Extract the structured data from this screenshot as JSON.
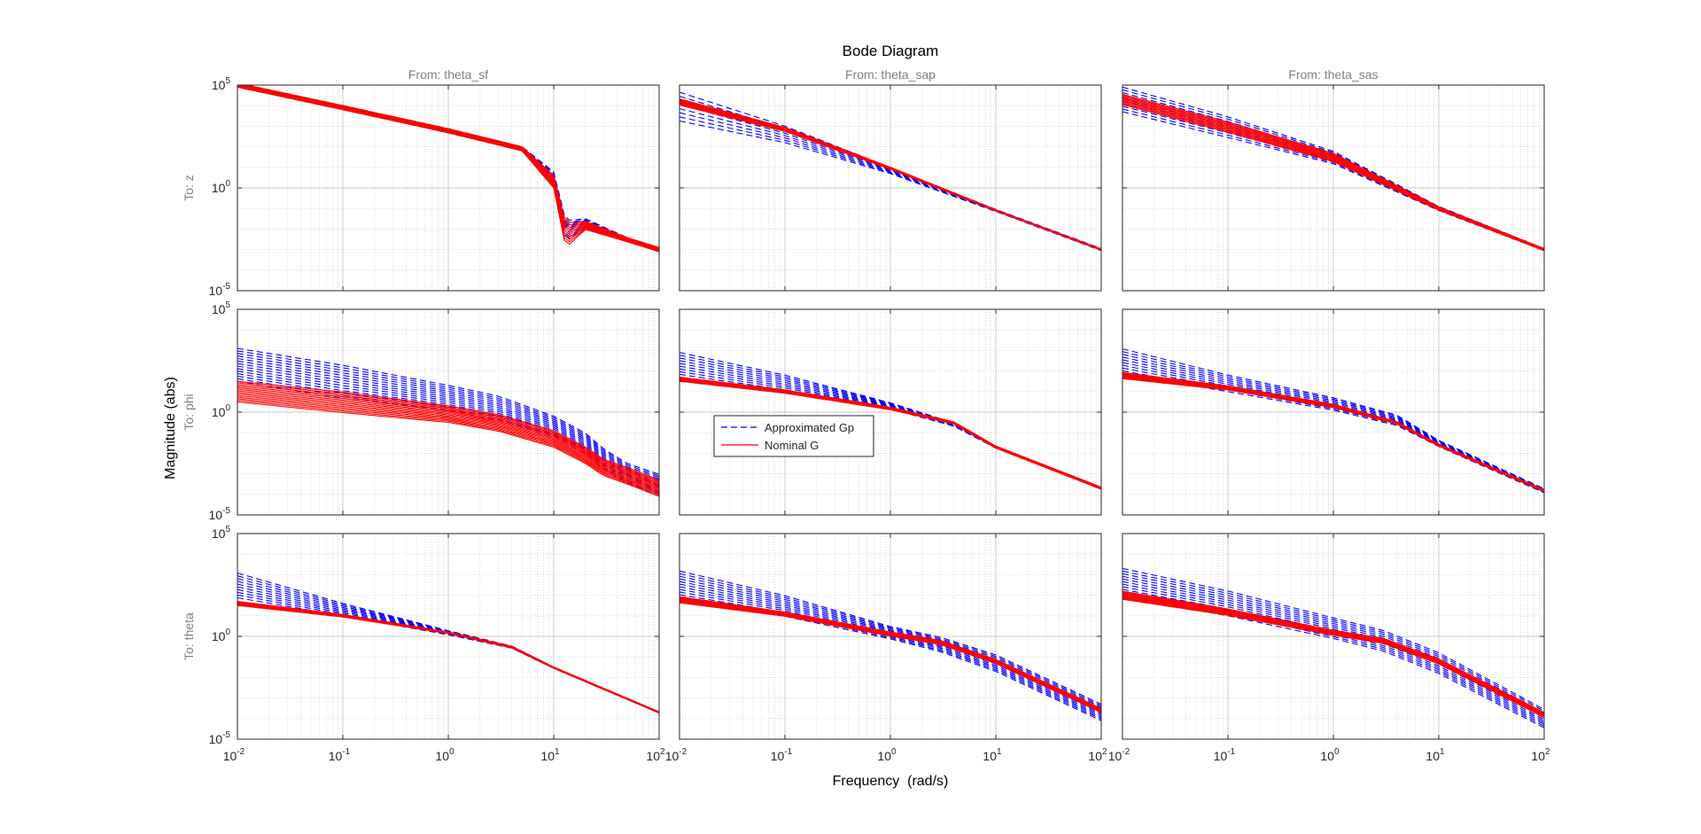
{
  "chart_data": {
    "type": "line",
    "title": "Bode Diagram",
    "xlabel": "Frequency  (rad/s)",
    "ylabel": "Magnitude (abs)",
    "x_scale": "log",
    "y_scale": "log",
    "xlim": [
      0.01,
      100
    ],
    "ylim": [
      1e-05,
      100000
    ],
    "grid": true,
    "x_ticks": [
      {
        "base": "10",
        "exp": "-2"
      },
      {
        "base": "10",
        "exp": "-1"
      },
      {
        "base": "10",
        "exp": "0"
      },
      {
        "base": "10",
        "exp": "1"
      },
      {
        "base": "10",
        "exp": "2"
      }
    ],
    "y_ticks": [
      {
        "base": "10",
        "exp": "5"
      },
      {
        "base": "10",
        "exp": "0"
      },
      {
        "base": "10",
        "exp": "-5"
      }
    ],
    "column_titles": [
      "From: theta_sf",
      "From: theta_sap",
      "From: theta_sas"
    ],
    "row_titles": [
      "To: z",
      "To: phi",
      "To: theta"
    ],
    "legend": {
      "placement": "inside middle-left of row 2 column 2",
      "entries": [
        {
          "label": "Approximated Gp",
          "color": "#0000ff",
          "style": "dashed"
        },
        {
          "label": "Nominal G",
          "color": "#ff0000",
          "style": "solid"
        }
      ]
    },
    "series_style": {
      "approx": {
        "color": "#0000ff",
        "dash": "7 4",
        "width": 1.1
      },
      "nominal": {
        "color": "#ff0000",
        "dash": "",
        "width": 1.1
      }
    },
    "panels": [
      {
        "row": 0,
        "col": 0,
        "x": [
          0.01,
          0.1,
          1,
          5,
          10,
          13,
          20,
          50,
          100
        ],
        "approx": {
          "n": 10,
          "base": [
            100000,
            8000,
            600,
            80,
            3,
            0.008,
            0.02,
            0.003,
            0.001
          ],
          "spread": [
            0.1,
            0.1,
            0.1,
            0.1,
            0.3,
            0.5,
            0.2,
            0.1,
            0.1
          ]
        },
        "nominal": {
          "n": 10,
          "base": [
            100000,
            8000,
            600,
            80,
            2,
            0.005,
            0.015,
            0.003,
            0.001
          ],
          "spread": [
            0.1,
            0.1,
            0.1,
            0.1,
            0.3,
            0.6,
            0.2,
            0.1,
            0.1
          ]
        }
      },
      {
        "row": 0,
        "col": 1,
        "x": [
          0.01,
          0.1,
          1,
          10,
          100
        ],
        "approx": {
          "n": 8,
          "base": [
            9000,
            400,
            7,
            0.08,
            0.001
          ],
          "spread": [
            0.7,
            0.4,
            0.15,
            0.05,
            0.05
          ]
        },
        "nominal": {
          "n": 10,
          "base": [
            15000,
            700,
            9,
            0.08,
            0.001
          ],
          "spread": [
            0.15,
            0.1,
            0.05,
            0.03,
            0.03
          ]
        }
      },
      {
        "row": 0,
        "col": 2,
        "x": [
          0.01,
          0.1,
          1,
          10,
          100
        ],
        "approx": {
          "n": 10,
          "base": [
            20000,
            900,
            30,
            0.1,
            0.001
          ],
          "spread": [
            0.6,
            0.5,
            0.3,
            0.1,
            0.05
          ]
        },
        "nominal": {
          "n": 10,
          "base": [
            20000,
            900,
            30,
            0.1,
            0.001
          ],
          "spread": [
            0.25,
            0.25,
            0.2,
            0.08,
            0.05
          ]
        }
      },
      {
        "row": 1,
        "col": 0,
        "x": [
          0.01,
          0.1,
          1,
          3,
          10,
          20,
          30,
          50,
          100
        ],
        "approx": {
          "n": 14,
          "base": [
            200,
            30,
            5,
            1.5,
            0.2,
            0.03,
            0.005,
            0.001,
            0.0003
          ],
          "spread": [
            0.8,
            0.8,
            0.6,
            0.6,
            0.5,
            0.5,
            0.5,
            0.5,
            0.5
          ]
        },
        "nominal": {
          "n": 14,
          "base": [
            10,
            3,
            0.8,
            0.3,
            0.05,
            0.008,
            0.002,
            0.0008,
            0.0002
          ],
          "spread": [
            0.5,
            0.5,
            0.4,
            0.4,
            0.4,
            0.4,
            0.4,
            0.4,
            0.4
          ]
        }
      },
      {
        "row": 1,
        "col": 1,
        "x": [
          0.01,
          0.1,
          1,
          4,
          10,
          100
        ],
        "approx": {
          "n": 10,
          "base": [
            200,
            25,
            2,
            0.25,
            0.02,
            0.0002
          ],
          "spread": [
            0.6,
            0.4,
            0.15,
            0.08,
            0.05,
            0.05
          ]
        },
        "nominal": {
          "n": 10,
          "base": [
            40,
            10,
            1.5,
            0.3,
            0.02,
            0.0002
          ],
          "spread": [
            0.1,
            0.08,
            0.06,
            0.05,
            0.05,
            0.05
          ]
        }
      },
      {
        "row": 1,
        "col": 2,
        "x": [
          0.01,
          0.1,
          1,
          4,
          10,
          100
        ],
        "approx": {
          "n": 10,
          "base": [
            300,
            25,
            2.5,
            0.4,
            0.03,
            0.00015
          ],
          "spread": [
            0.6,
            0.4,
            0.3,
            0.25,
            0.15,
            0.1
          ]
        },
        "nominal": {
          "n": 10,
          "base": [
            60,
            15,
            2,
            0.3,
            0.025,
            0.00015
          ],
          "spread": [
            0.15,
            0.1,
            0.08,
            0.06,
            0.05,
            0.05
          ]
        }
      },
      {
        "row": 2,
        "col": 0,
        "x": [
          0.01,
          0.1,
          1,
          4,
          10,
          100
        ],
        "approx": {
          "n": 10,
          "base": [
            300,
            20,
            1.5,
            0.3,
            0.03,
            0.0002
          ],
          "spread": [
            0.6,
            0.3,
            0.1,
            0.05,
            0.03,
            0.03
          ]
        },
        "nominal": {
          "n": 10,
          "base": [
            40,
            10,
            1.5,
            0.3,
            0.03,
            0.0002
          ],
          "spread": [
            0.1,
            0.06,
            0.04,
            0.04,
            0.03,
            0.03
          ]
        }
      },
      {
        "row": 2,
        "col": 1,
        "x": [
          0.01,
          0.1,
          1,
          3,
          10,
          100
        ],
        "approx": {
          "n": 12,
          "base": [
            300,
            30,
            1.5,
            0.4,
            0.05,
            0.0002
          ],
          "spread": [
            0.7,
            0.5,
            0.3,
            0.35,
            0.4,
            0.4
          ]
        },
        "nominal": {
          "n": 10,
          "base": [
            60,
            12,
            1.3,
            0.5,
            0.06,
            0.00025
          ],
          "spread": [
            0.15,
            0.1,
            0.1,
            0.1,
            0.1,
            0.1
          ]
        }
      },
      {
        "row": 2,
        "col": 2,
        "x": [
          0.01,
          0.1,
          1,
          3,
          10,
          100
        ],
        "approx": {
          "n": 12,
          "base": [
            400,
            40,
            2.5,
            0.6,
            0.05,
            0.0001
          ],
          "spread": [
            0.7,
            0.6,
            0.5,
            0.5,
            0.5,
            0.45
          ]
        },
        "nominal": {
          "n": 10,
          "base": [
            100,
            15,
            1.5,
            0.6,
            0.06,
            0.00015
          ],
          "spread": [
            0.2,
            0.15,
            0.12,
            0.12,
            0.12,
            0.12
          ]
        }
      }
    ]
  }
}
